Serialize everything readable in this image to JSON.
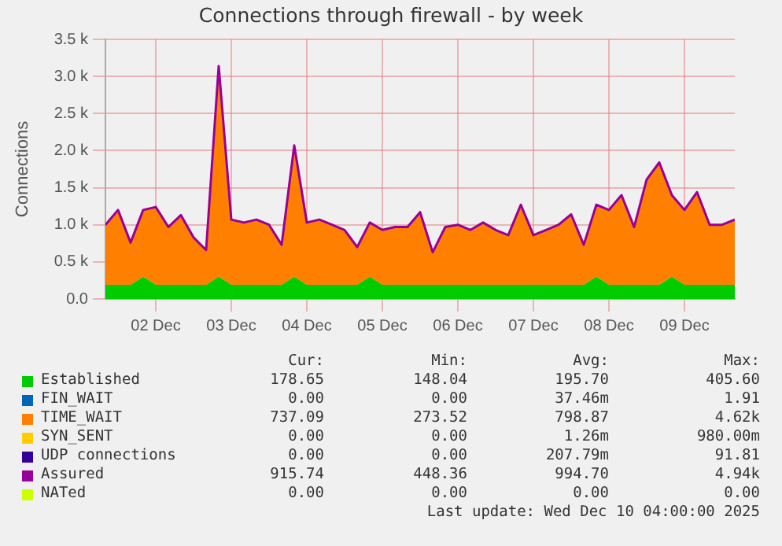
{
  "chart_data": {
    "type": "area",
    "title": "Connections through firewall - by week",
    "ylabel": "Connections",
    "stacked": true,
    "grid": true,
    "legend": "bottom",
    "x": [
      "2025-12-01T20:00",
      "2025-12-02T00:00",
      "2025-12-02T04:00",
      "2025-12-02T08:00",
      "2025-12-02T12:00",
      "2025-12-02T16:00",
      "2025-12-02T20:00",
      "2025-12-03T00:00",
      "2025-12-03T04:00",
      "2025-12-03T08:00",
      "2025-12-03T12:00",
      "2025-12-03T16:00",
      "2025-12-03T20:00",
      "2025-12-04T00:00",
      "2025-12-04T04:00",
      "2025-12-04T08:00",
      "2025-12-04T12:00",
      "2025-12-04T16:00",
      "2025-12-04T20:00",
      "2025-12-05T00:00",
      "2025-12-05T04:00",
      "2025-12-05T08:00",
      "2025-12-05T12:00",
      "2025-12-05T16:00",
      "2025-12-05T20:00",
      "2025-12-06T00:00",
      "2025-12-06T04:00",
      "2025-12-06T08:00",
      "2025-12-06T12:00",
      "2025-12-06T16:00",
      "2025-12-06T20:00",
      "2025-12-07T00:00",
      "2025-12-07T04:00",
      "2025-12-07T08:00",
      "2025-12-07T12:00",
      "2025-12-07T16:00",
      "2025-12-07T20:00",
      "2025-12-08T00:00",
      "2025-12-08T04:00",
      "2025-12-08T08:00",
      "2025-12-08T12:00",
      "2025-12-08T16:00",
      "2025-12-08T20:00",
      "2025-12-09T00:00",
      "2025-12-09T04:00",
      "2025-12-09T08:00",
      "2025-12-09T12:00",
      "2025-12-09T16:00",
      "2025-12-09T20:00",
      "2025-12-10T00:00",
      "2025-12-10T04:00"
    ],
    "xlim": [
      "2025-12-01T20:00",
      "2025-12-10T04:00"
    ],
    "xticks": [
      {
        "value": "2025-12-02T12:00",
        "label": "02 Dec"
      },
      {
        "value": "2025-12-03T12:00",
        "label": "03 Dec"
      },
      {
        "value": "2025-12-04T12:00",
        "label": "04 Dec"
      },
      {
        "value": "2025-12-05T12:00",
        "label": "05 Dec"
      },
      {
        "value": "2025-12-06T12:00",
        "label": "06 Dec"
      },
      {
        "value": "2025-12-07T12:00",
        "label": "07 Dec"
      },
      {
        "value": "2025-12-08T12:00",
        "label": "08 Dec"
      },
      {
        "value": "2025-12-09T12:00",
        "label": "09 Dec"
      }
    ],
    "ylim": [
      0,
      3500
    ],
    "yticks": [
      {
        "value": 0,
        "label": "0.0"
      },
      {
        "value": 500,
        "label": "0.5 k"
      },
      {
        "value": 1000,
        "label": "1.0 k"
      },
      {
        "value": 1500,
        "label": "1.5 k"
      },
      {
        "value": 2000,
        "label": "2.0 k"
      },
      {
        "value": 2500,
        "label": "2.5 k"
      },
      {
        "value": 3000,
        "label": "3.0 k"
      },
      {
        "value": 3500,
        "label": "3.5 k"
      }
    ],
    "series": [
      {
        "name": "Established",
        "color": "#00cc00",
        "values": [
          190,
          190,
          190,
          300,
          190,
          190,
          190,
          190,
          190,
          300,
          190,
          190,
          190,
          190,
          190,
          300,
          190,
          190,
          190,
          190,
          190,
          300,
          190,
          190,
          190,
          190,
          190,
          190,
          190,
          190,
          190,
          190,
          190,
          190,
          190,
          190,
          190,
          190,
          190,
          300,
          190,
          190,
          190,
          190,
          190,
          300,
          190,
          190,
          190,
          190,
          190
        ]
      },
      {
        "name": "FIN_WAIT",
        "color": "#0066b3",
        "type": "line",
        "values": [
          null,
          null,
          null,
          null,
          null,
          null,
          null,
          null,
          null,
          null,
          null,
          null,
          null,
          null,
          null,
          null,
          null,
          null,
          null,
          null,
          null,
          null,
          null,
          null,
          null,
          null,
          null,
          null,
          null,
          null,
          null,
          null,
          null,
          null,
          null,
          null,
          null,
          null,
          null,
          null,
          null,
          null,
          null,
          null,
          null,
          null,
          null,
          null,
          null,
          null,
          null
        ]
      },
      {
        "name": "TIME_WAIT",
        "color": "#ff8000",
        "values": [
          810,
          1010,
          570,
          900,
          1050,
          780,
          940,
          640,
          470,
          2840,
          880,
          840,
          880,
          810,
          540,
          1770,
          840,
          880,
          810,
          740,
          510,
          730,
          740,
          780,
          780,
          980,
          440,
          780,
          810,
          740,
          840,
          740,
          670,
          1080,
          670,
          740,
          810,
          950,
          540,
          970,
          1010,
          1210,
          780,
          1420,
          1650,
          1100,
          1010,
          1250,
          810,
          810,
          880
        ]
      },
      {
        "name": "SYN_SENT",
        "color": "#ffcc00",
        "type": "line",
        "values": [
          null,
          null,
          null,
          null,
          null,
          null,
          null,
          null,
          null,
          null,
          null,
          null,
          null,
          null,
          null,
          null,
          null,
          null,
          null,
          null,
          null,
          null,
          null,
          null,
          null,
          null,
          null,
          null,
          null,
          null,
          null,
          null,
          null,
          null,
          null,
          null,
          null,
          null,
          null,
          null,
          null,
          null,
          null,
          null,
          null,
          null,
          null,
          null,
          null,
          null,
          null
        ]
      },
      {
        "name": "UDP connections",
        "color": "#330099",
        "type": "line",
        "values": [
          null,
          null,
          null,
          null,
          null,
          null,
          null,
          null,
          null,
          null,
          null,
          null,
          null,
          null,
          null,
          null,
          null,
          null,
          null,
          null,
          null,
          null,
          null,
          null,
          null,
          null,
          null,
          null,
          null,
          null,
          null,
          null,
          null,
          null,
          null,
          null,
          null,
          null,
          null,
          null,
          null,
          null,
          null,
          null,
          null,
          null,
          null,
          null,
          null,
          null,
          null
        ]
      },
      {
        "name": "Assured",
        "color": "#990099",
        "type": "line",
        "values": [
          1000,
          1200,
          760,
          1200,
          1240,
          970,
          1130,
          830,
          660,
          3140,
          1070,
          1030,
          1070,
          1000,
          730,
          2070,
          1030,
          1070,
          1000,
          930,
          700,
          1030,
          930,
          970,
          970,
          1170,
          630,
          970,
          1000,
          930,
          1030,
          930,
          860,
          1270,
          860,
          930,
          1000,
          1140,
          730,
          1270,
          1200,
          1400,
          970,
          1610,
          1840,
          1400,
          1200,
          1440,
          1000,
          1000,
          1070
        ]
      },
      {
        "name": "NATed",
        "color": "#ccff00",
        "type": "line",
        "values": [
          null,
          null,
          null,
          null,
          null,
          null,
          null,
          null,
          null,
          null,
          null,
          null,
          null,
          null,
          null,
          null,
          null,
          null,
          null,
          null,
          null,
          null,
          null,
          null,
          null,
          null,
          null,
          null,
          null,
          null,
          null,
          null,
          null,
          null,
          null,
          null,
          null,
          null,
          null,
          null,
          null,
          null,
          null,
          null,
          null,
          null,
          null,
          null,
          null,
          null,
          null
        ]
      }
    ],
    "annotations": [
      "Cur:",
      "Min:",
      "Avg:",
      "Max:",
      "178.65",
      "148.04",
      "195.70",
      "405.60",
      "0.00",
      "0.00",
      "37.46m",
      "1.91",
      "737.09",
      "273.52",
      "798.87",
      "4.62k",
      "0.00",
      "0.00",
      "1.26m",
      "980.00m",
      "0.00",
      "0.00",
      "207.79m",
      "91.81",
      "915.74",
      "448.36",
      "994.70",
      "4.94k",
      "0.00",
      "0.00",
      "0.00",
      "0.00",
      "Last update: Wed Dec 10 04:00:00 2025"
    ]
  }
}
